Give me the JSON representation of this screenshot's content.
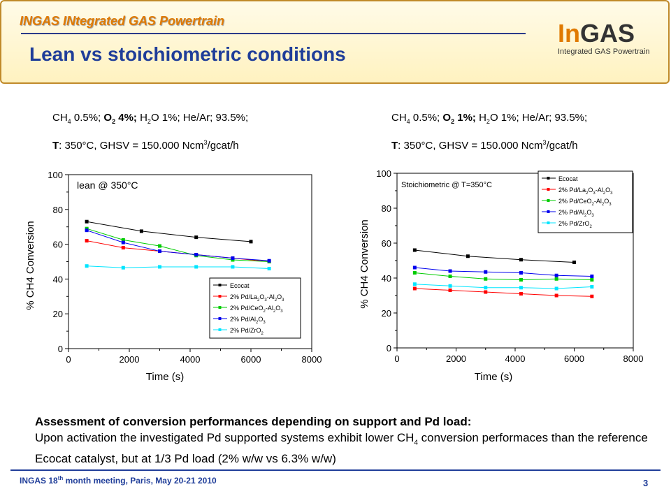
{
  "header": {
    "brand": "INGAS INtegrated GAS Powertrain",
    "title": "Lean vs stoichiometric conditions",
    "logo_in": "In",
    "logo_gas": "GAS",
    "logo_sub": "Integrated GAS Powertrain"
  },
  "conditions_left": {
    "ch4": "CH",
    "ch4_sub": "4",
    "ch4_val": " 0.5%; ",
    "o2": "O",
    "o2_sub": "2",
    "o2_val": " 4%;",
    "h2o": " H",
    "h2o_sub": "2",
    "h2o_val": "O 1%; He/Ar; 93.5%;",
    "t_label": "T",
    "t_val": ": 350°C, GHSV = 150.000 Ncm",
    "t_sup": "3",
    "t_end": "/gcat/h"
  },
  "conditions_right": {
    "ch4": "CH",
    "ch4_sub": "4",
    "ch4_val": " 0.5%; ",
    "o2": "O",
    "o2_sub": "2",
    "o2_val": " 1%;",
    "h2o": " H",
    "h2o_sub": "2",
    "h2o_val": "O 1%; He/Ar; 93.5%;",
    "t_label": "T",
    "t_val": ": 350°C, GHSV = 150.000 Ncm",
    "t_sup": "3",
    "t_end": "/gcat/h"
  },
  "assessment": {
    "title": "Assessment of conversion performances depending on support and Pd load:",
    "line1a": "Upon activation the investigated Pd supported systems exhibit lower CH",
    "line1sub": "4",
    "line1b": " conversion performaces than the reference  Ecocat catalyst, but at 1/3 Pd load (2% w/w vs 6.3% w/w)"
  },
  "footer": {
    "text_a": "INGAS 18",
    "text_sup": "th",
    "text_b": " month meeting, Paris, May 20-21 2010",
    "page": "3"
  },
  "colors": {
    "Ecocat": "#000000",
    "La": "#ff0000",
    "Ce": "#00cc00",
    "Al": "#0000ee",
    "Zr": "#00e5ff"
  },
  "chart_data": [
    {
      "type": "line",
      "annotation": "lean @ 350°C",
      "xlabel": "Time (s)",
      "ylabel": "% CH4  Conversion",
      "xlim": [
        0,
        8000
      ],
      "ylim": [
        0,
        100
      ],
      "xticks": [
        0,
        2000,
        4000,
        6000,
        8000
      ],
      "yticks": [
        0,
        20,
        40,
        60,
        80,
        100
      ],
      "legend_position": "lower-right",
      "series": [
        {
          "name": "Ecocat",
          "color": "#000000",
          "x": [
            600,
            2400,
            4200,
            6000
          ],
          "y": [
            73,
            67.5,
            64,
            61.5
          ]
        },
        {
          "name": "2% Pd/La2O3-Al2O3",
          "color": "#ff0000",
          "x": [
            600,
            1800,
            3000,
            4200,
            5400,
            6600
          ],
          "y": [
            62,
            58,
            56,
            54,
            52,
            50
          ]
        },
        {
          "name": "2% Pd/CeO2-Al2O3",
          "color": "#00cc00",
          "x": [
            600,
            1800,
            3000,
            4200,
            5400,
            6600
          ],
          "y": [
            69,
            62.5,
            59,
            53.5,
            51,
            50
          ]
        },
        {
          "name": "2% Pd/Al2O3",
          "color": "#0000ee",
          "x": [
            600,
            1800,
            3000,
            4200,
            5400,
            6600
          ],
          "y": [
            68,
            61,
            56,
            54,
            52,
            50.5
          ]
        },
        {
          "name": "2% Pd/ZrO2",
          "color": "#00e5ff",
          "x": [
            600,
            1800,
            3000,
            4200,
            5400,
            6600
          ],
          "y": [
            47.5,
            46.5,
            47,
            47,
            47,
            46
          ]
        }
      ]
    },
    {
      "type": "line",
      "annotation": "Stoichiometric @ T=350°C",
      "xlabel": "Time (s)",
      "ylabel": "% CH4  Conversion",
      "xlim": [
        0,
        8000
      ],
      "ylim": [
        0,
        100
      ],
      "xticks": [
        0,
        2000,
        4000,
        6000,
        8000
      ],
      "yticks": [
        0,
        20,
        40,
        60,
        80,
        100
      ],
      "legend_position": "top-right",
      "series": [
        {
          "name": "Ecocat",
          "color": "#000000",
          "x": [
            600,
            2400,
            4200,
            6000
          ],
          "y": [
            56,
            52.5,
            50.5,
            49
          ]
        },
        {
          "name": "2% Pd/La2O3-Al2O3",
          "color": "#ff0000",
          "x": [
            600,
            1800,
            3000,
            4200,
            5400,
            6600
          ],
          "y": [
            34,
            33,
            32,
            31,
            30,
            29.5
          ]
        },
        {
          "name": "2% Pd/CeO2-Al2O3",
          "color": "#00cc00",
          "x": [
            600,
            1800,
            3000,
            4200,
            5400,
            6600
          ],
          "y": [
            43,
            41,
            39.5,
            39,
            39.5,
            39
          ]
        },
        {
          "name": "2% Pd/Al2O3",
          "color": "#0000ee",
          "x": [
            600,
            1800,
            3000,
            4200,
            5400,
            6600
          ],
          "y": [
            46,
            44,
            43.5,
            43,
            41.5,
            41
          ]
        },
        {
          "name": "2% Pd/ZrO2",
          "color": "#00e5ff",
          "x": [
            600,
            1800,
            3000,
            4200,
            5400,
            6600
          ],
          "y": [
            36.5,
            35.5,
            34.5,
            34.5,
            34,
            35
          ]
        }
      ]
    }
  ]
}
